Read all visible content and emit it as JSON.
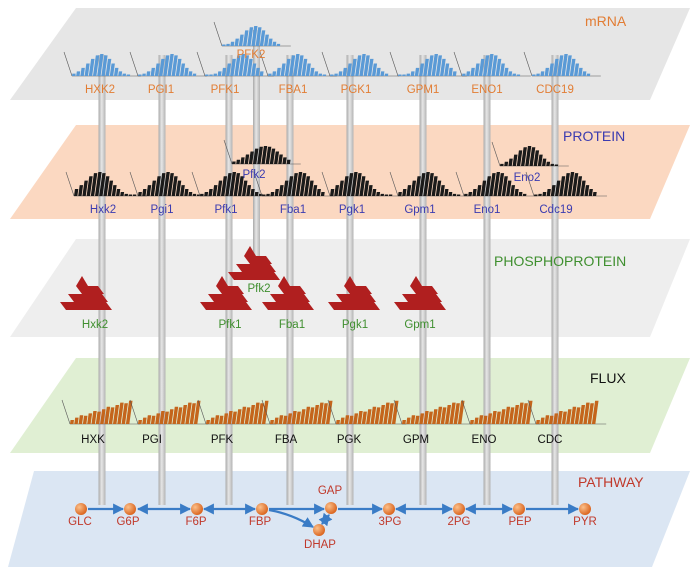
{
  "colors": {
    "mrna_plane": "#e6e6e6",
    "protein_plane": "#fbd8c1",
    "phospho_plane": "#eeeeee",
    "flux_plane": "#e0efd3",
    "pathway_plane": "#dbe6f3",
    "mrna_bar": "#5a9ad6",
    "protein_bar": "#1a1a1a",
    "phospho_bar": "#b01f1f",
    "flux_bar": "#c4651c",
    "pillar": "#c9c9c9",
    "arrow": "#3a7cc6",
    "node": "#e87a28",
    "mrna_text": "#e27d34",
    "protein_text": "#3b3bb0",
    "phospho_text": "#3f8f2f",
    "flux_text": "#111111",
    "pathway_text": "#c0392b"
  },
  "levels": {
    "mrna": "mRNA",
    "protein": "PROTEIN",
    "phospho": "PHOSPHOPROTEIN",
    "flux": "FLUX",
    "pathway": "PATHWAY"
  },
  "mrna_labels": [
    "HXK2",
    "PGI1",
    "PFK1",
    "FBA1",
    "PGK1",
    "GPM1",
    "ENO1",
    "CDC19"
  ],
  "mrna_extra": "PFK2",
  "protein_labels": [
    "Hxk2",
    "Pgi1",
    "Pfk1",
    "Fba1",
    "Pgk1",
    "Gpm1",
    "Eno1",
    "Cdc19"
  ],
  "protein_extra": [
    "Pfk2",
    "Eno2"
  ],
  "phospho_labels": [
    "Hxk2",
    "Pfk1",
    "Fba1",
    "Pgk1",
    "Gpm1"
  ],
  "phospho_extra": "Pfk2",
  "flux_labels": [
    "HXK",
    "PGI",
    "PFK",
    "FBA",
    "PGK",
    "GPM",
    "ENO",
    "CDC"
  ],
  "pathway_nodes": [
    "GLC",
    "G6P",
    "F6P",
    "FBP",
    "GAP",
    "DHAP",
    "3PG",
    "2PG",
    "PEP",
    "PYR"
  ]
}
